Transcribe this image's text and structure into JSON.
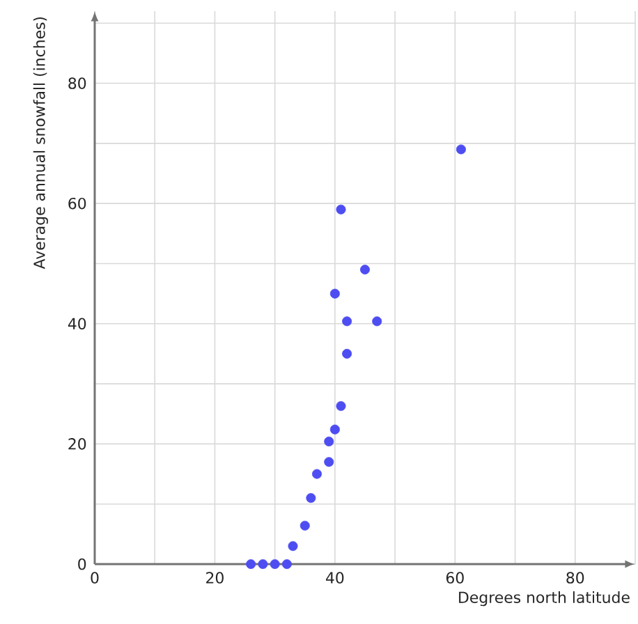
{
  "chart_data": {
    "type": "scatter",
    "xlabel": "Degrees north latitude",
    "ylabel": "Average annual snowfall (inches)",
    "x": [
      26,
      28,
      30,
      32,
      33,
      35,
      36,
      37,
      39,
      39,
      40,
      41,
      42,
      42,
      40,
      45,
      47,
      41,
      61
    ],
    "values": [
      0,
      0,
      0,
      0,
      3,
      6.4,
      11,
      15,
      17,
      20.4,
      22.4,
      26.3,
      35,
      40.4,
      45,
      49,
      40.4,
      59,
      69
    ],
    "color": "#4d4df2",
    "marker": "circle",
    "grid": true,
    "xlim": [
      0,
      90
    ],
    "ylim": [
      0,
      92
    ],
    "xticks": [
      0,
      {
        "value": 10,
        "label": null
      },
      20,
      {
        "value": 30,
        "label": null
      },
      40,
      {
        "value": 50,
        "label": null
      },
      60,
      {
        "value": 70,
        "label": null
      },
      80,
      {
        "value": 90,
        "label": null
      }
    ],
    "yticks": [
      0,
      {
        "value": 10,
        "label": null
      },
      20,
      {
        "value": 30,
        "label": null
      },
      40,
      {
        "value": 50,
        "label": null
      },
      60,
      {
        "value": 70,
        "label": null
      },
      80,
      {
        "value": 90,
        "label": null
      }
    ]
  }
}
